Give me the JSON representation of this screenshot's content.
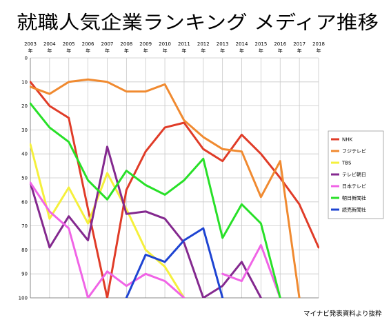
{
  "chart_data": {
    "type": "line",
    "title": "就職人気企業ランキング メディア推移",
    "source_note": "マイナビ発表資料より抜粋",
    "x": [
      "2003",
      "2004",
      "2005",
      "2006",
      "2007",
      "2008",
      "2009",
      "2010",
      "2011",
      "2012",
      "2013",
      "2014",
      "2015",
      "2016",
      "2017",
      "2018"
    ],
    "x_suffix": "年",
    "yticks": [
      0,
      10,
      20,
      30,
      40,
      50,
      60,
      70,
      80,
      90,
      100
    ],
    "ylim": [
      0,
      100
    ],
    "y_inverted": true,
    "grid": true,
    "legend_position": "right",
    "series": [
      {
        "name": "NHK",
        "color": "#e03c28",
        "values": [
          10,
          20,
          25,
          63,
          100,
          55,
          39,
          29,
          27,
          38,
          43,
          32,
          40,
          50,
          61,
          79
        ]
      },
      {
        "name": "フジテレビ",
        "color": "#f08a30",
        "values": [
          12,
          15,
          10,
          9,
          10,
          14,
          14,
          11,
          26,
          33,
          38,
          39,
          58,
          43,
          100,
          null
        ]
      },
      {
        "name": "TBS",
        "color": "#f5f03c",
        "values": [
          36,
          67,
          54,
          69,
          48,
          63,
          80,
          87,
          100,
          null,
          null,
          null,
          null,
          null,
          null,
          null
        ]
      },
      {
        "name": "テレビ朝日",
        "color": "#84298f",
        "values": [
          52,
          79,
          66,
          76,
          37,
          65,
          64,
          67,
          77,
          100,
          95,
          85,
          100,
          null,
          null,
          null
        ]
      },
      {
        "name": "日本テレビ",
        "color": "#f064e6",
        "values": [
          52,
          64,
          71,
          100,
          89,
          95,
          90,
          93,
          100,
          null,
          90,
          93,
          78,
          100,
          null,
          null
        ]
      },
      {
        "name": "朝日新聞社",
        "color": "#28e028",
        "values": [
          19,
          29,
          35,
          51,
          59,
          47,
          53,
          57,
          51,
          42,
          75,
          61,
          69,
          100,
          null,
          null
        ]
      },
      {
        "name": "読売新聞社",
        "color": "#1e44d2",
        "values": [
          null,
          null,
          null,
          null,
          null,
          100,
          82,
          85,
          76,
          71,
          100,
          null,
          null,
          null,
          null,
          null
        ]
      }
    ]
  }
}
